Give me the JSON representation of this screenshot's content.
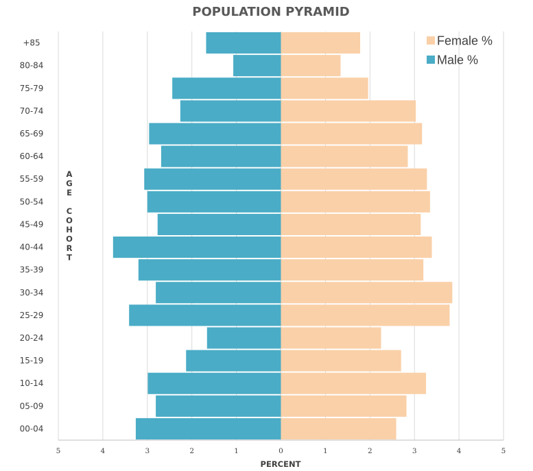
{
  "chart_data": {
    "type": "bar",
    "orientation": "horizontal",
    "title": "POPULATION PYRAMID",
    "xlabel": "PERCENT",
    "ylabel": "AGE COHORT",
    "xlim": [
      -5,
      5
    ],
    "x_tick_labels": [
      "5",
      "4",
      "3",
      "2",
      "1",
      "0",
      "1",
      "2",
      "3",
      "4",
      "5"
    ],
    "grid": "vertical",
    "legend_position": "top-right",
    "categories": [
      "+85",
      "80-84",
      "75-79",
      "70-74",
      "65-69",
      "60-64",
      "55-59",
      "50-54",
      "45-49",
      "40-44",
      "35-39",
      "30-34",
      "25-29",
      "20-24",
      "15-19",
      "10-14",
      "05-09",
      "00-04"
    ],
    "series": [
      {
        "name": "Female %",
        "color": "#fad0a8",
        "side": "right",
        "values": [
          1.78,
          1.34,
          1.96,
          3.03,
          3.17,
          2.85,
          3.28,
          3.35,
          3.14,
          3.39,
          3.2,
          3.85,
          3.79,
          2.25,
          2.7,
          3.26,
          2.82,
          2.59
        ]
      },
      {
        "name": "Male %",
        "color": "#4aacc6",
        "side": "left",
        "values": [
          1.68,
          1.07,
          2.44,
          2.26,
          2.96,
          2.69,
          3.07,
          3.0,
          2.77,
          3.77,
          3.2,
          2.81,
          3.41,
          1.66,
          2.13,
          2.99,
          2.81,
          3.26
        ]
      }
    ]
  }
}
